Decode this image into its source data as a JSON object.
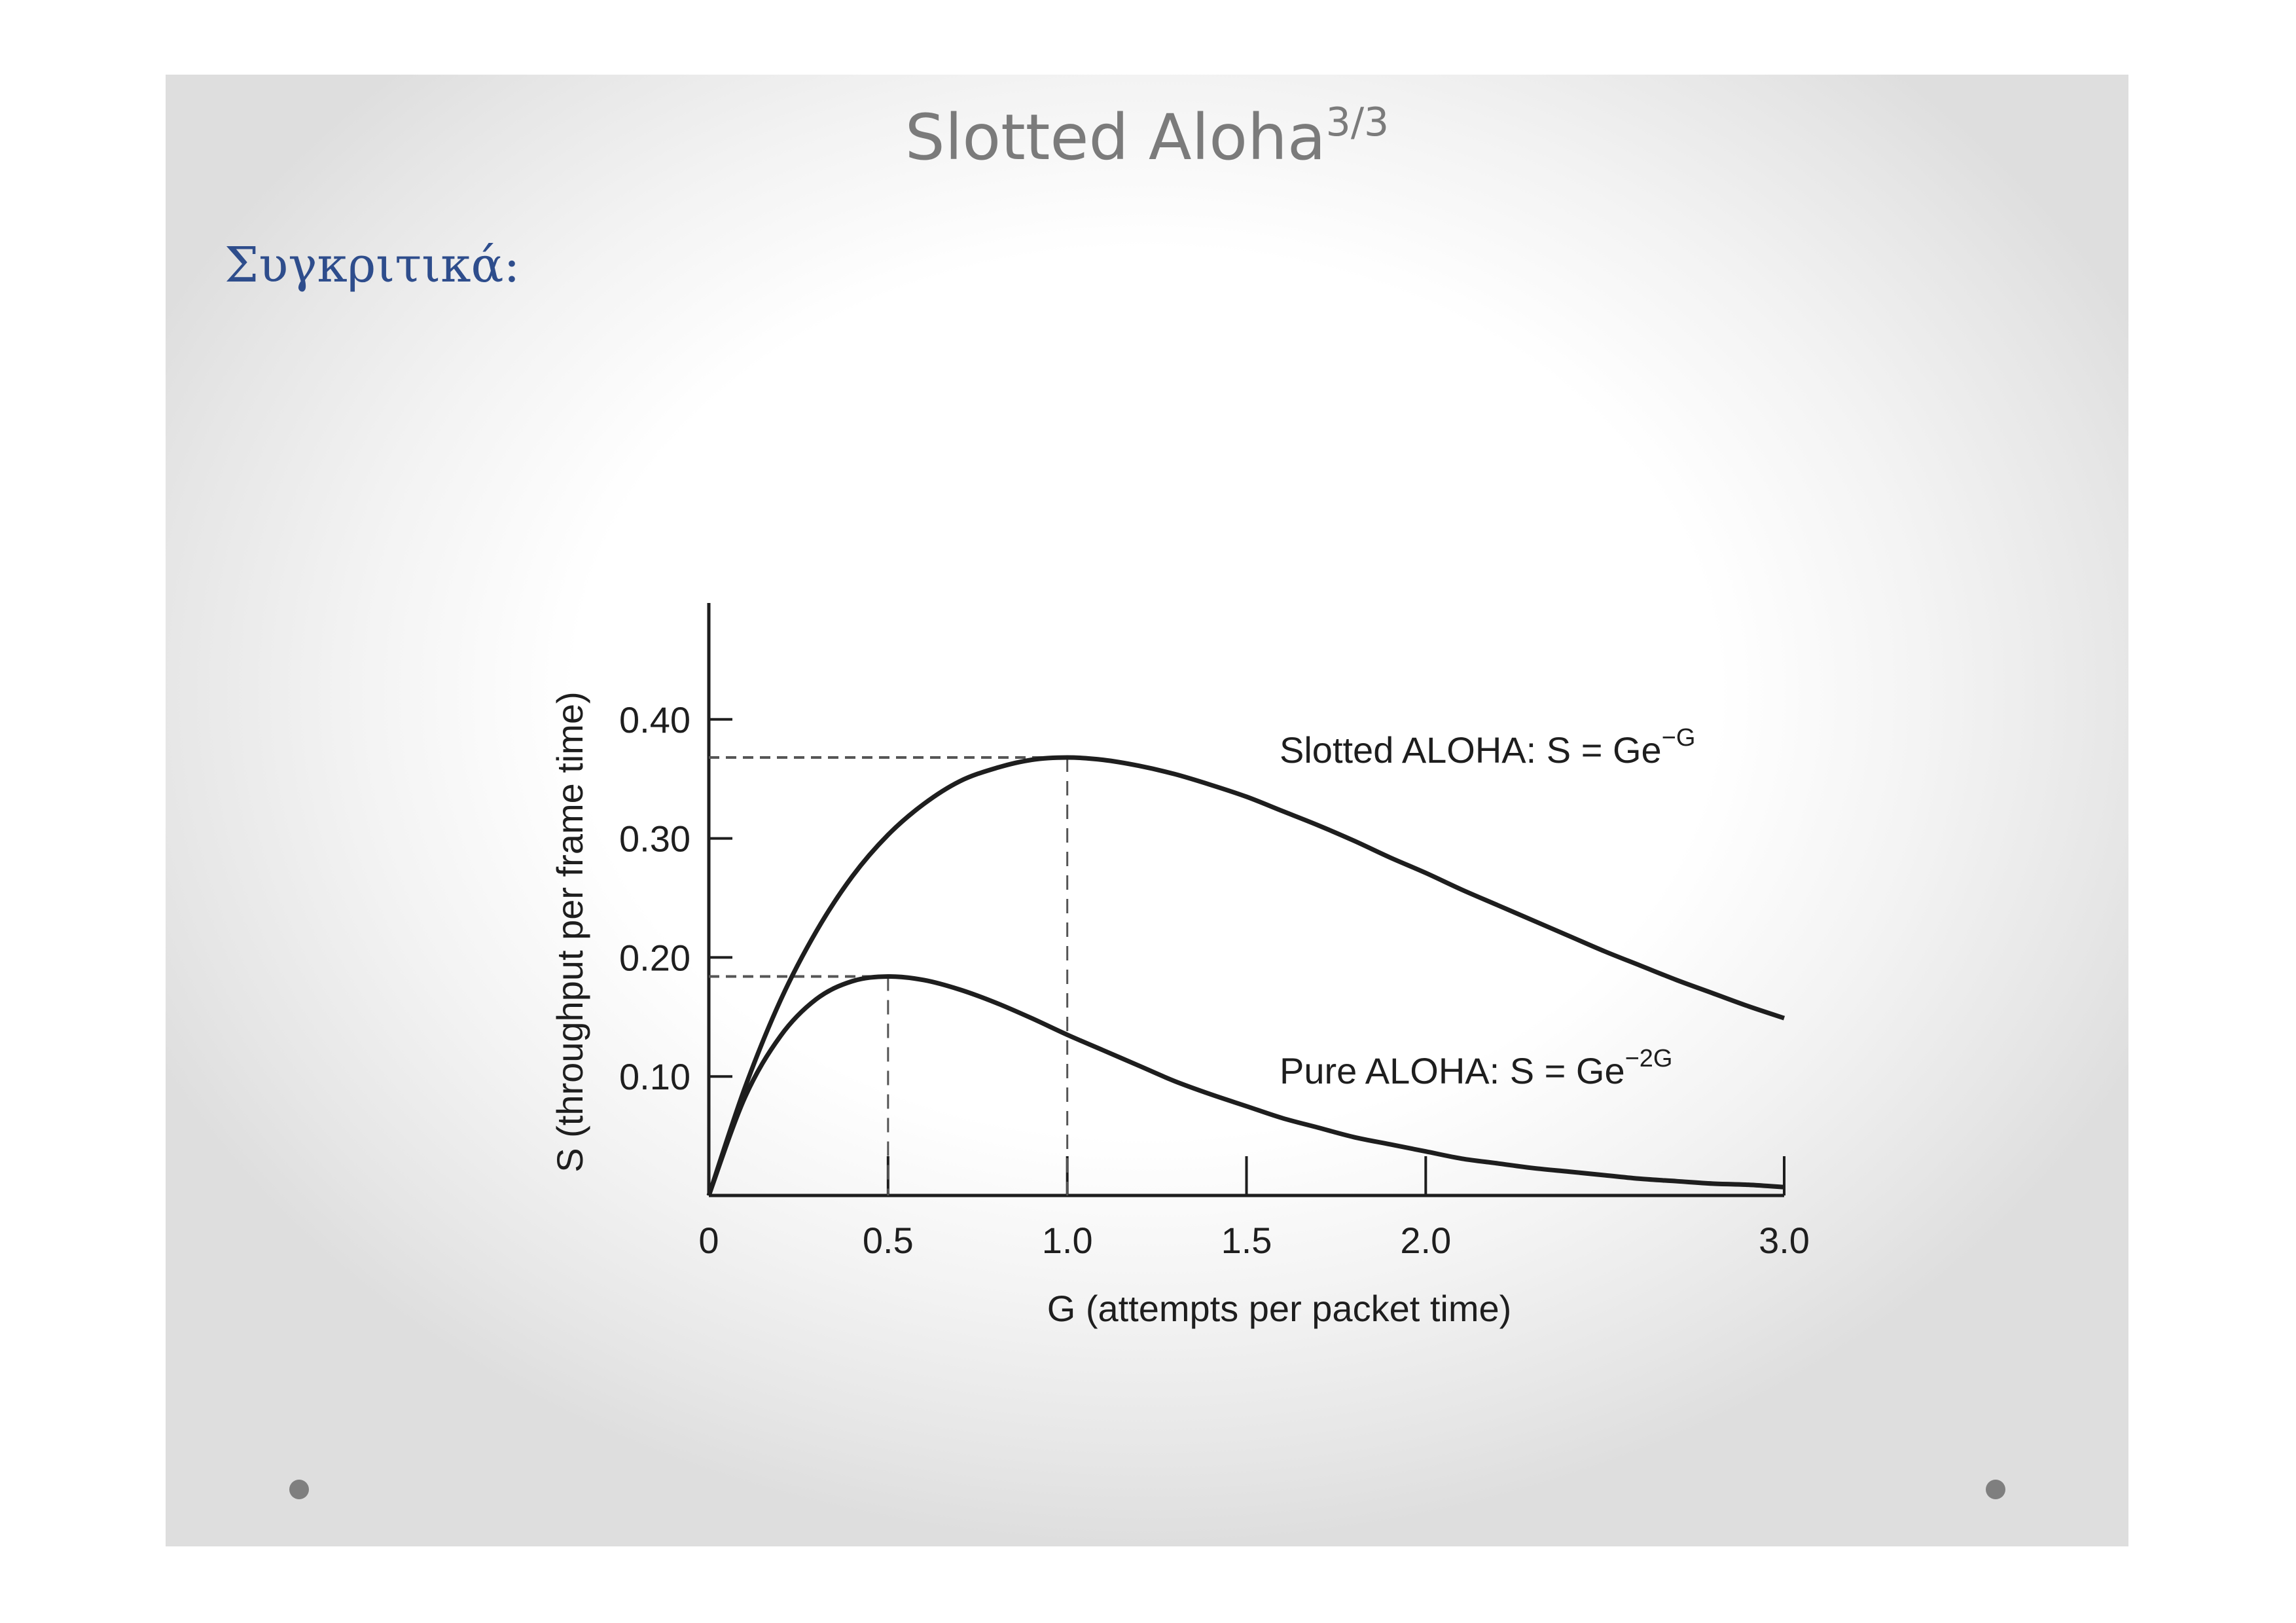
{
  "slide": {
    "title": "Slotted Aloha",
    "title_superscript": "3/3",
    "subtitle": "Συγκριτικά:"
  },
  "colors": {
    "title": "#7b7b7b",
    "subtitle": "#2e4d8c",
    "ink": "#1e1e1e",
    "bullet": "#7f7f7f"
  },
  "chart_data": {
    "type": "line",
    "xlabel": "G (attempts per packet time)",
    "ylabel": "S (throughput per frame time)",
    "xlim": [
      0,
      3.0
    ],
    "ylim": [
      0,
      0.5
    ],
    "x_ticks": [
      "0",
      "0.5",
      "1.0",
      "1.5",
      "2.0",
      "3.0"
    ],
    "x_tick_values": [
      0,
      0.5,
      1.0,
      1.5,
      2.0,
      3.0
    ],
    "y_ticks": [
      "0.10",
      "0.20",
      "0.30",
      "0.40"
    ],
    "y_tick_values": [
      0.1,
      0.2,
      0.3,
      0.4
    ],
    "grid": false,
    "legend": "none",
    "series": [
      {
        "name": "Slotted ALOHA: S = Ge",
        "name_exponent": "−G",
        "x": [
          0,
          0.1,
          0.2,
          0.3,
          0.4,
          0.5,
          0.6,
          0.7,
          0.8,
          0.9,
          1.0,
          1.1,
          1.2,
          1.3,
          1.4,
          1.5,
          1.6,
          1.7,
          1.8,
          1.9,
          2.0,
          2.1,
          2.2,
          2.3,
          2.4,
          2.5,
          2.6,
          2.7,
          2.8,
          2.9,
          3.0
        ],
        "values": [
          0,
          0.09,
          0.164,
          0.222,
          0.268,
          0.303,
          0.329,
          0.348,
          0.359,
          0.366,
          0.368,
          0.366,
          0.361,
          0.354,
          0.345,
          0.335,
          0.323,
          0.311,
          0.298,
          0.284,
          0.271,
          0.257,
          0.244,
          0.231,
          0.218,
          0.205,
          0.193,
          0.181,
          0.17,
          0.159,
          0.149
        ]
      },
      {
        "name": "Pure ALOHA: S = Ge",
        "name_exponent": "−2G",
        "x": [
          0,
          0.1,
          0.2,
          0.3,
          0.4,
          0.5,
          0.6,
          0.7,
          0.8,
          0.9,
          1.0,
          1.1,
          1.2,
          1.3,
          1.4,
          1.5,
          1.6,
          1.7,
          1.8,
          1.9,
          2.0,
          2.1,
          2.2,
          2.3,
          2.4,
          2.5,
          2.6,
          2.7,
          2.8,
          2.9,
          3.0
        ],
        "values": [
          0,
          0.082,
          0.134,
          0.165,
          0.18,
          0.184,
          0.181,
          0.173,
          0.162,
          0.149,
          0.135,
          0.122,
          0.109,
          0.096,
          0.085,
          0.075,
          0.065,
          0.057,
          0.049,
          0.043,
          0.037,
          0.031,
          0.027,
          0.023,
          0.02,
          0.017,
          0.014,
          0.012,
          0.01,
          0.009,
          0.007
        ]
      }
    ],
    "annotations": [
      {
        "type": "dashed-guide",
        "series": "Slotted ALOHA",
        "x": 1.0,
        "y": 0.368
      },
      {
        "type": "dashed-guide",
        "series": "Pure ALOHA",
        "x": 0.5,
        "y": 0.184
      }
    ]
  }
}
